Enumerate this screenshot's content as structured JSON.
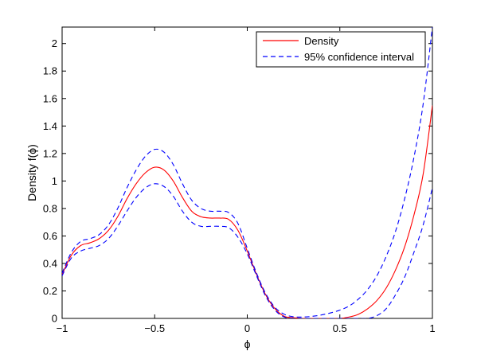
{
  "chart_data": {
    "type": "line",
    "xlabel": "ϕ",
    "ylabel": "Density f(ϕ)",
    "xlim": [
      -1,
      1
    ],
    "ylim": [
      0,
      2.12
    ],
    "xticks": [
      -1,
      -0.5,
      0,
      0.5,
      1
    ],
    "xtick_labels": [
      "−1",
      "−0.5",
      "0",
      "0.5",
      "1"
    ],
    "yticks": [
      0,
      0.2,
      0.4,
      0.6,
      0.8,
      1,
      1.2,
      1.4,
      1.6,
      1.8,
      2
    ],
    "ytick_labels": [
      "0",
      "0.2",
      "0.4",
      "0.6",
      "0.8",
      "1",
      "1.2",
      "1.4",
      "1.6",
      "1.8",
      "2"
    ],
    "grid": false,
    "legend_position": "top-right",
    "series": [
      {
        "name": "Density",
        "style": "solid",
        "color": "#ff0000",
        "x": [
          -1,
          -0.95,
          -0.9,
          -0.85,
          -0.8,
          -0.75,
          -0.7,
          -0.65,
          -0.6,
          -0.55,
          -0.5,
          -0.45,
          -0.4,
          -0.35,
          -0.3,
          -0.25,
          -0.2,
          -0.15,
          -0.1,
          -0.05,
          0,
          0.05,
          0.1,
          0.15,
          0.2,
          0.25,
          0.3,
          0.35,
          0.4,
          0.45,
          0.5,
          0.55,
          0.6,
          0.65,
          0.7,
          0.75,
          0.8,
          0.85,
          0.9,
          0.95,
          1
        ],
        "y": [
          0.32,
          0.46,
          0.53,
          0.55,
          0.58,
          0.64,
          0.74,
          0.87,
          0.98,
          1.06,
          1.1,
          1.08,
          1.0,
          0.88,
          0.78,
          0.74,
          0.73,
          0.73,
          0.72,
          0.64,
          0.49,
          0.32,
          0.17,
          0.07,
          0.015,
          0.005,
          0.0,
          0.0,
          0.0,
          0.0,
          0.0,
          0.01,
          0.03,
          0.07,
          0.13,
          0.22,
          0.35,
          0.52,
          0.75,
          1.05,
          1.55
        ]
      },
      {
        "name": "95% confidence interval",
        "style": "dashed",
        "color": "#0000ff",
        "x": [
          -1,
          -0.95,
          -0.9,
          -0.85,
          -0.8,
          -0.75,
          -0.7,
          -0.65,
          -0.6,
          -0.55,
          -0.5,
          -0.45,
          -0.4,
          -0.35,
          -0.3,
          -0.25,
          -0.2,
          -0.15,
          -0.1,
          -0.05,
          0,
          0.05,
          0.1,
          0.15,
          0.2,
          0.25,
          0.3,
          0.35,
          0.4,
          0.45,
          0.5,
          0.55,
          0.6,
          0.65,
          0.7,
          0.75,
          0.8,
          0.85,
          0.9,
          0.95,
          1
        ],
        "y": [
          0.33,
          0.48,
          0.56,
          0.58,
          0.61,
          0.68,
          0.8,
          0.95,
          1.08,
          1.18,
          1.23,
          1.21,
          1.12,
          0.98,
          0.86,
          0.8,
          0.78,
          0.78,
          0.77,
          0.69,
          0.51,
          0.33,
          0.18,
          0.08,
          0.03,
          0.012,
          0.01,
          0.015,
          0.025,
          0.04,
          0.06,
          0.09,
          0.14,
          0.21,
          0.31,
          0.45,
          0.63,
          0.87,
          1.17,
          1.56,
          2.12
        ]
      },
      {
        "name": "",
        "style": "dashed",
        "color": "#0000ff",
        "x": [
          -1,
          -0.95,
          -0.9,
          -0.85,
          -0.8,
          -0.75,
          -0.7,
          -0.65,
          -0.6,
          -0.55,
          -0.5,
          -0.45,
          -0.4,
          -0.35,
          -0.3,
          -0.25,
          -0.2,
          -0.15,
          -0.1,
          -0.05,
          0,
          0.05,
          0.1,
          0.15,
          0.2,
          0.25,
          0.3,
          0.35,
          0.4,
          0.45,
          0.5,
          0.55,
          0.6,
          0.65,
          0.7,
          0.75,
          0.8,
          0.85,
          0.9,
          0.95,
          1
        ],
        "y": [
          0.31,
          0.44,
          0.49,
          0.51,
          0.53,
          0.58,
          0.67,
          0.78,
          0.88,
          0.95,
          0.98,
          0.96,
          0.89,
          0.78,
          0.7,
          0.67,
          0.67,
          0.67,
          0.66,
          0.59,
          0.47,
          0.31,
          0.16,
          0.06,
          0.01,
          0.0,
          0.0,
          0.0,
          0.0,
          0.0,
          0.0,
          0.0,
          0.0,
          0.0,
          0.02,
          0.07,
          0.17,
          0.3,
          0.48,
          0.68,
          0.95
        ]
      }
    ]
  }
}
